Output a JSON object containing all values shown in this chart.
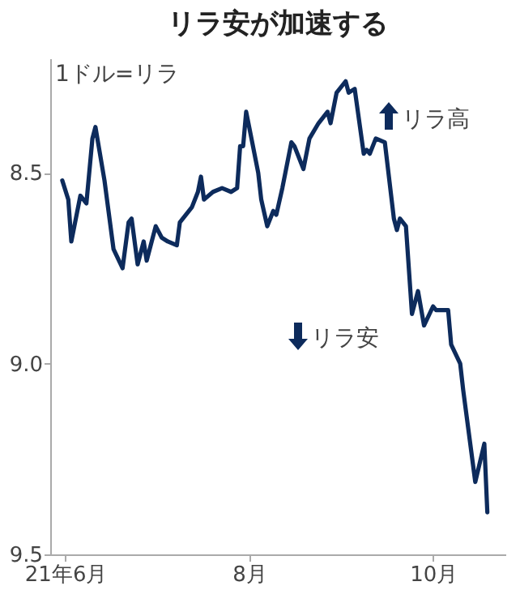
{
  "chart_data": {
    "type": "line",
    "title": "リラ安が加速する",
    "annotations": [
      "1ドル=リラ",
      "リラ高",
      "リラ安"
    ],
    "x": [
      "--05-31",
      "--06-02",
      "--06-03",
      "--06-06",
      "--06-08",
      "--06-10",
      "--06-11",
      "--06-14",
      "--06-17",
      "--06-20",
      "--06-22",
      "--06-23",
      "--06-25",
      "--06-27",
      "--06-28",
      "--07-01",
      "--07-03",
      "--07-05",
      "--07-08",
      "--07-09",
      "--07-13",
      "--07-15",
      "--07-16",
      "--07-17",
      "--07-20",
      "--07-23",
      "--07-26",
      "--07-28",
      "--07-29",
      "--07-30",
      "--07-31",
      "--08-02",
      "--08-04",
      "--08-05",
      "--08-07",
      "--08-09",
      "--08-10",
      "--08-12",
      "--08-13",
      "--08-15",
      "--08-16",
      "--08-19",
      "--08-21",
      "--08-24",
      "--08-27",
      "--08-28",
      "--08-30",
      "--09-02",
      "--09-03",
      "--09-05",
      "--09-08",
      "--09-09",
      "--09-10",
      "--09-12",
      "--09-15",
      "--09-18",
      "--09-19",
      "--09-20",
      "--09-22",
      "--09-24",
      "--09-26",
      "--09-28",
      "--10-01",
      "--10-02",
      "--10-05",
      "--10-06",
      "--10-07",
      "--10-10",
      "--10-11",
      "--10-15",
      "--10-18",
      "--10-19"
    ],
    "series": [
      {
        "color": "#0d2b5c",
        "values": [
          8.52,
          8.57,
          8.68,
          8.56,
          8.58,
          8.41,
          8.38,
          8.52,
          8.7,
          8.75,
          8.63,
          8.62,
          8.74,
          8.68,
          8.73,
          8.64,
          8.67,
          8.68,
          8.69,
          8.63,
          8.59,
          8.55,
          8.51,
          8.57,
          8.55,
          8.54,
          8.55,
          8.54,
          8.43,
          8.43,
          8.34,
          8.42,
          8.5,
          8.57,
          8.64,
          8.6,
          8.61,
          8.54,
          8.5,
          8.42,
          8.43,
          8.49,
          8.41,
          8.37,
          8.34,
          8.37,
          8.29,
          8.26,
          8.29,
          8.28,
          8.45,
          8.44,
          8.45,
          8.41,
          8.42,
          8.62,
          8.65,
          8.62,
          8.64,
          8.87,
          8.81,
          8.9,
          8.85,
          8.86,
          8.86,
          8.86,
          8.95,
          9.0,
          9.07,
          9.31,
          9.21,
          9.39
        ]
      }
    ],
    "xlim": [
      "--05-27",
      "--10-25"
    ],
    "xticks": [
      {
        "value": "--06-01",
        "label": "21年6月"
      },
      {
        "value": "--08-01",
        "label": "8月"
      },
      {
        "value": "--10-01",
        "label": "10月"
      }
    ],
    "ylim": [
      9.5,
      8.2
    ],
    "yticks": [
      {
        "value": 8.5,
        "label": "8.5"
      },
      {
        "value": 9,
        "label": "9.0"
      },
      {
        "value": 9.5,
        "label": "9.5"
      }
    ],
    "grid": false,
    "marker": "none",
    "line_style": "solid"
  }
}
